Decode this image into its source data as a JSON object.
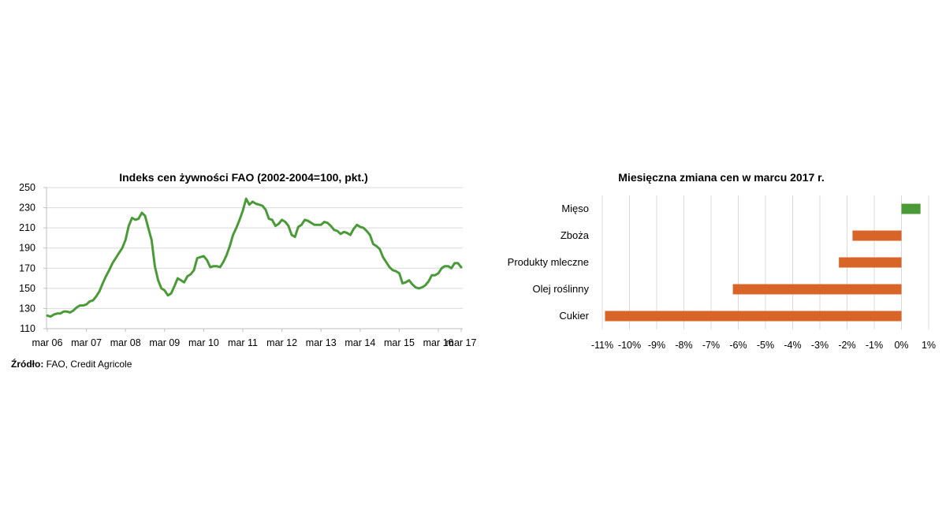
{
  "chart_data": [
    {
      "type": "line",
      "title": "Indeks cen żywności FAO (2002-2004=100, pkt.)",
      "xlabel": "",
      "ylabel": "",
      "ylim": [
        110,
        250
      ],
      "yticks": [
        "110",
        "130",
        "150",
        "170",
        "190",
        "210",
        "230",
        "250"
      ],
      "xticks": [
        "mar 06",
        "mar 07",
        "mar 08",
        "mar 09",
        "mar 10",
        "mar 11",
        "mar 12",
        "mar 13",
        "mar 14",
        "mar 15",
        "mar 16",
        "mar 17"
      ],
      "grid": "horizontal",
      "color": "#4a9a38",
      "series": [
        {
          "points": [
            [
              0,
              123
            ],
            [
              1,
              122
            ],
            [
              2,
              124
            ],
            [
              3,
              125
            ],
            [
              4,
              125
            ],
            [
              5,
              127
            ],
            [
              6,
              127
            ],
            [
              7,
              126
            ],
            [
              8,
              128
            ],
            [
              9,
              131
            ],
            [
              10,
              133
            ],
            [
              11,
              133
            ],
            [
              12,
              134
            ],
            [
              13,
              137
            ],
            [
              14,
              138
            ],
            [
              15,
              142
            ],
            [
              16,
              147
            ],
            [
              17,
              155
            ],
            [
              18,
              162
            ],
            [
              19,
              168
            ],
            [
              20,
              175
            ],
            [
              21,
              180
            ],
            [
              22,
              185
            ],
            [
              23,
              190
            ],
            [
              24,
              198
            ],
            [
              25,
              212
            ],
            [
              26,
              220
            ],
            [
              27,
              218
            ],
            [
              28,
              219
            ],
            [
              29,
              225
            ],
            [
              30,
              222
            ],
            [
              31,
              210
            ],
            [
              32,
              198
            ],
            [
              33,
              172
            ],
            [
              34,
              158
            ],
            [
              35,
              150
            ],
            [
              36,
              148
            ],
            [
              37,
              143
            ],
            [
              38,
              145
            ],
            [
              39,
              152
            ],
            [
              40,
              160
            ],
            [
              41,
              158
            ],
            [
              42,
              156
            ],
            [
              43,
              162
            ],
            [
              44,
              164
            ],
            [
              45,
              168
            ],
            [
              46,
              180
            ],
            [
              47,
              181
            ],
            [
              48,
              182
            ],
            [
              49,
              178
            ],
            [
              50,
              171
            ],
            [
              51,
              172
            ],
            [
              52,
              172
            ],
            [
              53,
              171
            ],
            [
              54,
              176
            ],
            [
              55,
              183
            ],
            [
              56,
              192
            ],
            [
              57,
              203
            ],
            [
              58,
              210
            ],
            [
              59,
              218
            ],
            [
              60,
              227
            ],
            [
              61,
              239
            ],
            [
              62,
              233
            ],
            [
              63,
              236
            ],
            [
              64,
              234
            ],
            [
              65,
              233
            ],
            [
              66,
              232
            ],
            [
              67,
              228
            ],
            [
              68,
              219
            ],
            [
              69,
              218
            ],
            [
              70,
              212
            ],
            [
              71,
              214
            ],
            [
              72,
              218
            ],
            [
              73,
              216
            ],
            [
              74,
              212
            ],
            [
              75,
              203
            ],
            [
              76,
              201
            ],
            [
              77,
              211
            ],
            [
              78,
              213
            ],
            [
              79,
              218
            ],
            [
              80,
              217
            ],
            [
              81,
              215
            ],
            [
              82,
              213
            ],
            [
              83,
              213
            ],
            [
              84,
              213
            ],
            [
              85,
              216
            ],
            [
              86,
              215
            ],
            [
              87,
              212
            ],
            [
              88,
              208
            ],
            [
              89,
              207
            ],
            [
              90,
              204
            ],
            [
              91,
              206
            ],
            [
              92,
              205
            ],
            [
              93,
              203
            ],
            [
              94,
              209
            ],
            [
              95,
              213
            ],
            [
              96,
              211
            ],
            [
              97,
              210
            ],
            [
              98,
              207
            ],
            [
              99,
              203
            ],
            [
              100,
              194
            ],
            [
              101,
              192
            ],
            [
              102,
              189
            ],
            [
              103,
              181
            ],
            [
              104,
              176
            ],
            [
              105,
              171
            ],
            [
              106,
              168
            ],
            [
              107,
              167
            ],
            [
              108,
              165
            ],
            [
              109,
              155
            ],
            [
              110,
              156
            ],
            [
              111,
              158
            ],
            [
              112,
              154
            ],
            [
              113,
              151
            ],
            [
              114,
              150
            ],
            [
              115,
              151
            ],
            [
              116,
              153
            ],
            [
              117,
              157
            ],
            [
              118,
              163
            ],
            [
              119,
              163
            ],
            [
              120,
              165
            ],
            [
              121,
              170
            ],
            [
              122,
              172
            ],
            [
              123,
              172
            ],
            [
              124,
              170
            ],
            [
              125,
              175
            ],
            [
              126,
              175
            ],
            [
              127,
              171
            ]
          ]
        }
      ]
    },
    {
      "type": "bar",
      "orientation": "horizontal",
      "title": "Miesięczna zmiana cen w marcu 2017 r.",
      "xlabel": "",
      "ylabel": "",
      "xlim": [
        -11,
        1
      ],
      "xticks": [
        "-11%",
        "-10%",
        "-9%",
        "-8%",
        "-7%",
        "-6%",
        "-5%",
        "-4%",
        "-3%",
        "-2%",
        "-1%",
        "0%",
        "1%"
      ],
      "grid": "vertical",
      "categories": [
        "Mięso",
        "Zboża",
        "Produkty mleczne",
        "Olej roślinny",
        "Cukier"
      ],
      "values": [
        0.7,
        -1.8,
        -2.3,
        -6.2,
        -10.9
      ],
      "colors": {
        "positive": "#4a9a38",
        "negative": "#d96428"
      }
    }
  ],
  "source": {
    "label": "Źródło:",
    "text": " FAO, Credit Agricole"
  }
}
